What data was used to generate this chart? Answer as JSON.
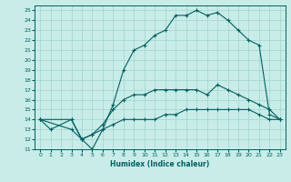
{
  "xlabel": "Humidex (Indice chaleur)",
  "xlim": [
    -0.5,
    23.5
  ],
  "ylim": [
    11,
    25.5
  ],
  "xticks": [
    0,
    1,
    2,
    3,
    4,
    5,
    6,
    7,
    8,
    9,
    10,
    11,
    12,
    13,
    14,
    15,
    16,
    17,
    18,
    19,
    20,
    21,
    22,
    23
  ],
  "yticks": [
    11,
    12,
    13,
    14,
    15,
    16,
    17,
    18,
    19,
    20,
    21,
    22,
    23,
    24,
    25
  ],
  "bg_color": "#c8ece8",
  "line_color": "#006060",
  "grid_color": "#a0d4ce",
  "curves": [
    {
      "x": [
        0,
        1,
        3,
        4,
        5,
        6,
        7,
        8,
        9,
        10,
        11,
        12,
        13,
        14,
        15,
        16,
        17,
        18,
        19,
        20,
        21,
        22,
        23
      ],
      "y": [
        14,
        13,
        14,
        12,
        11,
        13,
        15.5,
        19,
        21,
        21.5,
        22.5,
        23,
        24.5,
        24.5,
        25,
        24.5,
        24.8,
        24,
        23,
        22,
        21.5,
        14.5,
        14
      ]
    },
    {
      "x": [
        0,
        3,
        4,
        5,
        6,
        7,
        8,
        9,
        10,
        11,
        12,
        13,
        14,
        15,
        16,
        17,
        18,
        19,
        20,
        21,
        22,
        23
      ],
      "y": [
        14,
        14,
        12,
        12.5,
        13.5,
        15,
        16,
        16.5,
        16.5,
        17,
        17,
        17,
        17,
        17,
        16.5,
        17.5,
        17,
        16.5,
        16,
        15.5,
        15,
        14
      ]
    },
    {
      "x": [
        0,
        3,
        4,
        5,
        6,
        7,
        8,
        9,
        10,
        11,
        12,
        13,
        14,
        15,
        16,
        17,
        18,
        19,
        20,
        21,
        22,
        23
      ],
      "y": [
        14,
        13,
        12,
        12.5,
        13,
        13.5,
        14,
        14,
        14,
        14,
        14.5,
        14.5,
        15,
        15,
        15,
        15,
        15,
        15,
        15,
        14.5,
        14,
        14
      ]
    }
  ]
}
